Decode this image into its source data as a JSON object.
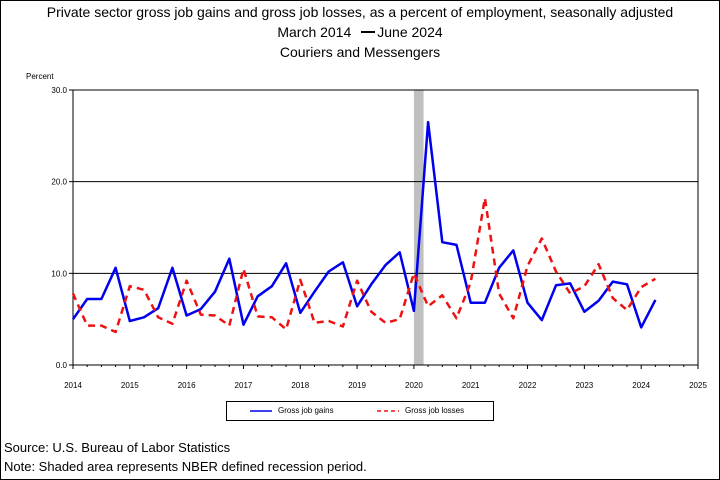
{
  "chart_data": {
    "type": "line",
    "title": "Private sector gross job gains and gross job losses, as a percent of employment, seasonally adjusted",
    "subtitle_start": "March 2014",
    "subtitle_end": "June 2024",
    "subtitle2": "Couriers and Messengers",
    "ylabel": "Percent",
    "ylim": [
      0,
      30
    ],
    "yticks": [
      "0.0",
      "10.0",
      "20.0",
      "30.0"
    ],
    "xlim": [
      2014,
      2025
    ],
    "xticks": [
      "2014",
      "2015",
      "2016",
      "2017",
      "2018",
      "2019",
      "2020",
      "2021",
      "2022",
      "2023",
      "2024",
      "2025"
    ],
    "grid": "horizontal",
    "recession": {
      "start": 2020.0,
      "end": 2020.17
    },
    "legend_position": "bottom",
    "series": [
      {
        "name": "Gross job gains",
        "color": "#0000ee",
        "style": "solid",
        "x": [
          2014.0,
          2014.25,
          2014.5,
          2014.75,
          2015.0,
          2015.25,
          2015.5,
          2015.75,
          2016.0,
          2016.25,
          2016.5,
          2016.75,
          2017.0,
          2017.25,
          2017.5,
          2017.75,
          2018.0,
          2018.25,
          2018.5,
          2018.75,
          2019.0,
          2019.25,
          2019.5,
          2019.75,
          2020.0,
          2020.25,
          2020.5,
          2020.75,
          2021.0,
          2021.25,
          2021.5,
          2021.75,
          2022.0,
          2022.25,
          2022.5,
          2022.75,
          2023.0,
          2023.25,
          2023.5,
          2023.75,
          2024.0,
          2024.25
        ],
        "values": [
          5.0,
          7.2,
          7.2,
          10.6,
          4.8,
          5.2,
          6.2,
          10.6,
          5.4,
          6.1,
          8.0,
          11.6,
          4.4,
          7.5,
          8.6,
          11.1,
          5.7,
          8.0,
          10.2,
          11.2,
          6.4,
          8.8,
          10.9,
          12.3,
          5.9,
          26.5,
          13.4,
          13.1,
          6.8,
          6.8,
          10.6,
          12.5,
          6.8,
          4.9,
          8.7,
          8.9,
          5.8,
          7.0,
          9.1,
          8.8,
          4.1,
          7.1
        ]
      },
      {
        "name": "Gross job losses",
        "color": "#ee1111",
        "style": "dashed",
        "x": [
          2014.0,
          2014.25,
          2014.5,
          2014.75,
          2015.0,
          2015.25,
          2015.5,
          2015.75,
          2016.0,
          2016.25,
          2016.5,
          2016.75,
          2017.0,
          2017.25,
          2017.5,
          2017.75,
          2018.0,
          2018.25,
          2018.5,
          2018.75,
          2019.0,
          2019.25,
          2019.5,
          2019.75,
          2020.0,
          2020.25,
          2020.5,
          2020.75,
          2021.0,
          2021.25,
          2021.5,
          2021.75,
          2022.0,
          2022.25,
          2022.5,
          2022.75,
          2023.0,
          2023.25,
          2023.5,
          2023.75,
          2024.0,
          2024.25
        ],
        "values": [
          7.8,
          4.3,
          4.3,
          3.6,
          8.6,
          8.2,
          5.2,
          4.5,
          9.2,
          5.5,
          5.4,
          4.3,
          10.5,
          5.3,
          5.2,
          3.9,
          9.3,
          4.6,
          4.8,
          4.2,
          9.2,
          5.8,
          4.6,
          5.0,
          10.0,
          6.4,
          7.6,
          5.1,
          9.0,
          18.2,
          7.8,
          5.1,
          10.8,
          13.8,
          10.2,
          7.8,
          8.6,
          11.0,
          7.3,
          6.0,
          8.5,
          9.4
        ]
      }
    ]
  },
  "footer": {
    "source": "Source: U.S. Bureau of Labor Statistics",
    "note": "Note: Shaded area represents NBER defined recession period."
  }
}
